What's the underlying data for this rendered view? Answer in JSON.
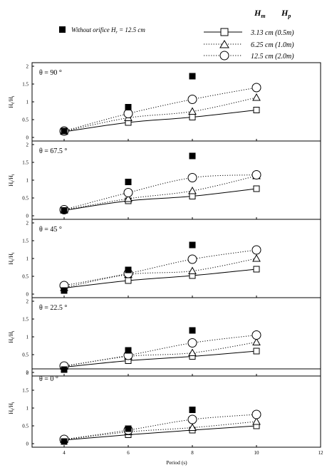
{
  "legend": {
    "filled_label": "Without orifice H",
    "filled_label_sub": "r",
    "filled_label_rest": " = 12.5 cm",
    "header_hm": "H",
    "header_hm_sub": "m",
    "header_hp": "H",
    "header_hp_sub": "p",
    "entries": [
      {
        "label": "3.13 cm (0.5m)"
      },
      {
        "label": "6.25 cm (1.0m)"
      },
      {
        "label": "12.5 cm (2.0m)"
      }
    ]
  },
  "chart_data": {
    "type": "scatter",
    "xlabel": "Period (s)",
    "ylabel_main": "H",
    "ylabel_sub1": "t",
    "ylabel_mid": "/H",
    "ylabel_sub2": "i",
    "xticks": [
      "4",
      "6",
      "8",
      "10",
      "12"
    ],
    "xlim": [
      3,
      12
    ],
    "ylim": [
      0,
      2
    ],
    "yticks": [
      "0",
      "0.5",
      "1",
      "1.5",
      "2"
    ],
    "x": [
      4,
      6,
      8,
      10
    ],
    "panels": [
      {
        "label": "θ = 90 °",
        "without_orifice": [
          0.18,
          0.85,
          1.72,
          null
        ],
        "series": [
          {
            "name": "3.13 cm (0.5m)",
            "values": [
              0.16,
              0.42,
              0.57,
              0.77
            ]
          },
          {
            "name": "6.25 cm (1.0m)",
            "values": [
              0.17,
              0.55,
              0.73,
              1.12
            ]
          },
          {
            "name": "12.5 cm (2.0m)",
            "values": [
              0.18,
              0.67,
              1.07,
              1.4
            ]
          }
        ]
      },
      {
        "label": "θ = 67.5 °",
        "without_orifice": [
          0.15,
          0.95,
          1.68,
          null
        ],
        "series": [
          {
            "name": "3.13 cm (0.5m)",
            "values": [
              0.15,
              0.42,
              0.55,
              0.76
            ]
          },
          {
            "name": "6.25 cm (1.0m)",
            "values": [
              0.16,
              0.48,
              0.7,
              1.12
            ]
          },
          {
            "name": "12.5 cm (2.0m)",
            "values": [
              0.17,
              0.65,
              1.07,
              1.15
            ]
          }
        ]
      },
      {
        "label": "θ = 45 °",
        "without_orifice": [
          0.1,
          0.68,
          1.38,
          null
        ],
        "series": [
          {
            "name": "3.13 cm (0.5m)",
            "values": [
              0.17,
              0.38,
              0.52,
              0.7
            ]
          },
          {
            "name": "6.25 cm (1.0m)",
            "values": [
              0.18,
              0.55,
              0.65,
              1.0
            ]
          },
          {
            "name": "12.5 cm (2.0m)",
            "values": [
              0.24,
              0.58,
              0.98,
              1.24
            ]
          }
        ]
      },
      {
        "label": "θ = 22.5 °",
        "without_orifice": [
          0.08,
          0.62,
          1.18,
          null
        ],
        "series": [
          {
            "name": "3.13 cm (0.5m)",
            "values": [
              0.15,
              0.33,
              0.45,
              0.6
            ]
          },
          {
            "name": "6.25 cm (1.0m)",
            "values": [
              0.17,
              0.45,
              0.55,
              0.85
            ]
          },
          {
            "name": "12.5 cm (2.0m)",
            "values": [
              0.18,
              0.48,
              0.83,
              1.05
            ]
          }
        ]
      },
      {
        "label": "θ = 0 °",
        "without_orifice": [
          0.06,
          0.42,
          0.95,
          null
        ],
        "series": [
          {
            "name": "3.13 cm (0.5m)",
            "values": [
              0.1,
              0.25,
              0.38,
              0.5
            ]
          },
          {
            "name": "6.25 cm (1.0m)",
            "values": [
              0.11,
              0.33,
              0.45,
              0.62
            ]
          },
          {
            "name": "12.5 cm (2.0m)",
            "values": [
              0.12,
              0.38,
              0.68,
              0.82
            ]
          }
        ]
      }
    ]
  }
}
